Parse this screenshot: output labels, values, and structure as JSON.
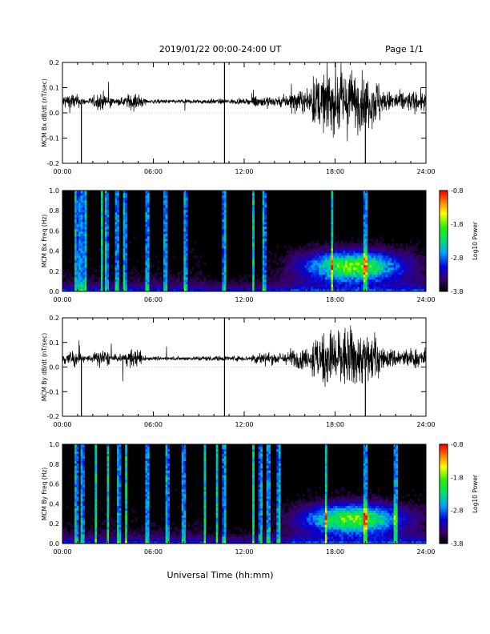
{
  "header": {
    "title": "2019/01/22  00:00-24:00 UT",
    "page": "Page 1/1"
  },
  "xlabel": "Universal Time (hh:mm)",
  "chart_data": [
    {
      "type": "line",
      "ylabel": "MCM Bx dB/dt (nT/sec)",
      "ylim": [
        -0.2,
        0.2
      ],
      "yticks": [
        "0.2",
        "0.1",
        "0.0",
        "-0.1",
        "-0.2"
      ],
      "xlim": [
        0,
        24
      ],
      "xticks": [
        "00:00",
        "06:00",
        "12:00",
        "18:00",
        "24:00"
      ],
      "baseline": 0.045,
      "spikes": [
        {
          "t": 1.25,
          "value": -0.2
        },
        {
          "t": 10.7,
          "value": 0.2
        },
        {
          "t": 10.7,
          "value": -0.2
        },
        {
          "t": 20.0,
          "value": -0.2
        }
      ]
    },
    {
      "type": "heatmap",
      "ylabel": "MCM Bx Freq (Hz)",
      "ylim": [
        0,
        1.0
      ],
      "yticks": [
        "1.0",
        "0.8",
        "0.6",
        "0.4",
        "0.2",
        "0.0"
      ],
      "xlim": [
        0,
        24
      ],
      "xticks": [
        "00:00",
        "06:00",
        "12:00",
        "18:00",
        "24:00"
      ],
      "colorbar": {
        "label": "Log10 Power",
        "ticks": [
          "-0.8",
          "-1.8",
          "-2.8",
          "-3.8"
        ],
        "range": [
          -3.8,
          -0.8
        ]
      }
    },
    {
      "type": "line",
      "ylabel": "MCM By dB/dt (nT/sec)",
      "ylim": [
        -0.2,
        0.2
      ],
      "yticks": [
        "0.2",
        "0.1",
        "0.0",
        "-0.1",
        "-0.2"
      ],
      "xlim": [
        0,
        24
      ],
      "xticks": [
        "00:00",
        "06:00",
        "12:00",
        "18:00",
        "24:00"
      ],
      "baseline": 0.035,
      "spikes": [
        {
          "t": 1.25,
          "value": -0.2
        },
        {
          "t": 10.7,
          "value": 0.2
        },
        {
          "t": 10.7,
          "value": -0.2
        },
        {
          "t": 20.0,
          "value": -0.2
        }
      ]
    },
    {
      "type": "heatmap",
      "ylabel": "MCM By Freq (Hz)",
      "ylim": [
        0,
        1.0
      ],
      "yticks": [
        "1.0",
        "0.8",
        "0.6",
        "0.4",
        "0.2",
        "0.0"
      ],
      "xlim": [
        0,
        24
      ],
      "xticks": [
        "00:00",
        "06:00",
        "12:00",
        "18:00",
        "24:00"
      ],
      "colorbar": {
        "label": "Log10 Power",
        "ticks": [
          "-0.8",
          "-1.8",
          "-2.8",
          "-3.8"
        ],
        "range": [
          -3.8,
          -0.8
        ]
      }
    }
  ]
}
